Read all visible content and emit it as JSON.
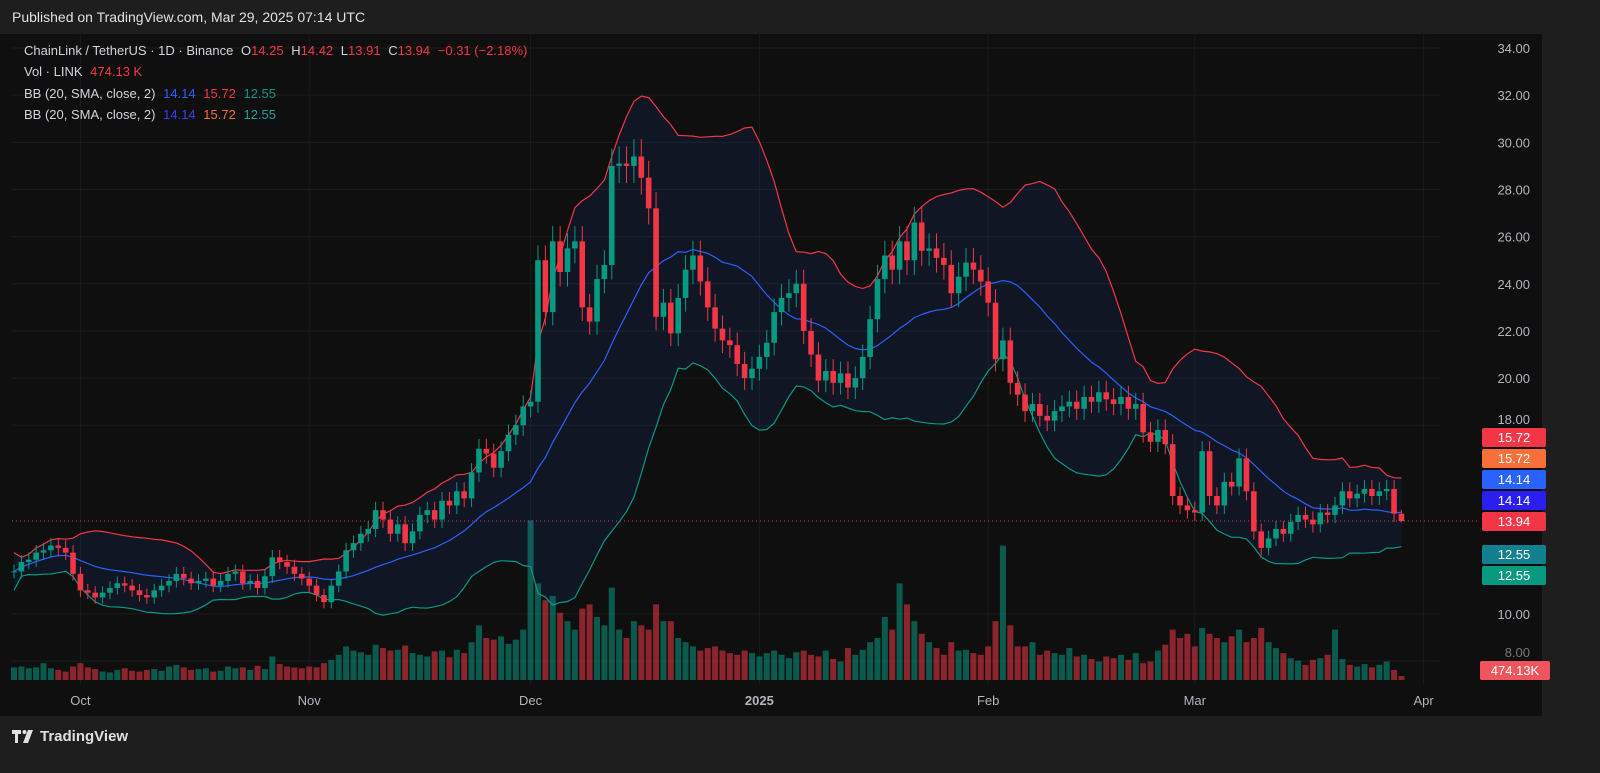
{
  "header": {
    "published": "Published on TradingView.com, Mar 29, 2025 07:14 UTC"
  },
  "footer": {
    "brand": "TradingView"
  },
  "legend": {
    "symbol": "ChainLink / TetherUS · 1D · Binance",
    "o_label": "O",
    "o": "14.25",
    "h_label": "H",
    "h": "14.42",
    "l_label": "L",
    "l": "13.91",
    "c_label": "C",
    "c": "13.94",
    "change": "−0.31 (−2.18%)",
    "vol_label": "Vol · LINK",
    "vol": "474.13 K",
    "bb1": {
      "label": "BB (20, SMA, close, 2)",
      "basis": "14.14",
      "upper": "15.72",
      "lower": "12.55"
    },
    "bb2": {
      "label": "BB (20, SMA, close, 2)",
      "basis": "14.14",
      "upper": "15.72",
      "lower": "12.55"
    }
  },
  "badges": {
    "upper1": "15.72",
    "upper2": "15.72",
    "basis1": "14.14",
    "basis2": "14.14",
    "last": "13.94",
    "lower1": "12.55",
    "lower2": "12.55",
    "volume": "474.13K"
  },
  "colors": {
    "up": "#089981",
    "down": "#f23645",
    "bb_upper": "#f23645",
    "bb_basis": "#2962ff",
    "bb_lower": "#089981",
    "background": "#0f0f0f"
  },
  "chart_data": {
    "type": "candlestick",
    "title": "ChainLink / TetherUS · 1D · Binance",
    "ylim": [
      9,
      34.5
    ],
    "y_ticks": [
      "34.00",
      "32.00",
      "30.00",
      "28.00",
      "26.00",
      "24.00",
      "22.00",
      "20.00",
      "18.00",
      "10.00",
      "8.00"
    ],
    "x_ticks": [
      {
        "label": "Oct",
        "date": "2024-10-01"
      },
      {
        "label": "Nov",
        "date": "2024-11-01"
      },
      {
        "label": "Dec",
        "date": "2024-12-01"
      },
      {
        "label": "2025",
        "date": "2025-01-01"
      },
      {
        "label": "Feb",
        "date": "2025-02-01"
      },
      {
        "label": "Mar",
        "date": "2025-03-01"
      },
      {
        "label": "Apr",
        "date": "2025-04-01"
      }
    ],
    "grid": true,
    "last_candle": {
      "date": "2025-03-29",
      "open": 14.25,
      "high": 14.42,
      "low": 13.91,
      "close": 13.94,
      "volume_k": 474.13
    },
    "indicators": [
      {
        "type": "bollinger",
        "length": 20,
        "ma": "SMA",
        "source": "close",
        "mult": 2,
        "basis": 14.14,
        "upper": 15.72,
        "lower": 12.55
      }
    ],
    "volume_unit": "M LINK",
    "months": [
      {
        "month": "2024-09",
        "first_day": 22,
        "close": [
          11.8,
          12.2,
          12.3,
          12.6,
          12.7,
          12.9,
          12.8,
          12.6,
          11.7
        ],
        "volume": [
          1.5,
          1.6,
          1.4,
          1.5,
          2.0,
          1.4,
          1.2,
          1.0,
          1.6
        ]
      },
      {
        "month": "2024-10",
        "first_day": 1,
        "close": [
          11.0,
          10.9,
          10.7,
          10.9,
          11.1,
          11.3,
          11.2,
          11.0,
          10.8,
          10.7,
          11.0,
          11.2,
          11.4,
          11.7,
          11.5,
          11.3,
          11.4,
          11.5,
          11.2,
          11.4,
          11.7,
          11.8,
          11.3,
          11.4,
          11.1,
          11.6,
          12.4,
          12.2,
          12.0,
          11.7,
          11.5
        ],
        "volume": [
          2.0,
          1.5,
          1.3,
          1.0,
          0.9,
          1.2,
          1.4,
          1.1,
          1.0,
          1.2,
          1.3,
          1.1,
          1.6,
          1.8,
          1.5,
          1.2,
          1.3,
          1.4,
          1.0,
          1.1,
          1.6,
          1.4,
          1.5,
          1.2,
          1.7,
          1.3,
          2.8,
          1.9,
          1.6,
          1.5,
          1.4
        ]
      },
      {
        "month": "2024-11",
        "first_day": 1,
        "close": [
          11.2,
          10.8,
          10.5,
          11.2,
          11.8,
          12.7,
          13.0,
          13.4,
          13.6,
          14.4,
          14.0,
          13.4,
          13.8,
          13.0,
          13.5,
          14.2,
          14.4,
          14.0,
          14.8,
          14.6,
          15.2,
          14.9,
          16.0,
          17.0,
          16.8,
          16.2,
          16.9,
          17.6,
          18.0,
          18.8
        ],
        "volume": [
          1.6,
          1.5,
          2.0,
          2.4,
          3.0,
          4.0,
          3.5,
          3.3,
          3.0,
          4.2,
          3.8,
          3.5,
          3.6,
          4.1,
          3.2,
          3.0,
          2.8,
          3.4,
          3.5,
          2.7,
          3.6,
          3.2,
          4.5,
          6.5,
          5.0,
          4.8,
          5.2,
          4.3,
          4.8,
          6.0
        ]
      },
      {
        "month": "2024-12",
        "first_day": 1,
        "close": [
          19.0,
          25.0,
          22.8,
          25.8,
          24.5,
          25.5,
          25.8,
          23.0,
          22.4,
          24.2,
          24.8,
          29.0,
          29.1,
          29.0,
          29.4,
          28.5,
          27.2,
          22.6,
          23.2,
          21.9,
          23.4,
          24.6,
          25.2,
          24.1,
          23.0,
          22.1,
          21.6,
          21.4,
          20.6,
          20.0,
          20.4
        ],
        "volume": [
          19.0,
          11.5,
          9.5,
          10.0,
          8.0,
          7.0,
          6.0,
          8.5,
          9.0,
          7.5,
          6.5,
          11.0,
          6.0,
          5.0,
          7.0,
          6.5,
          6.0,
          9.0,
          7.0,
          7.0,
          5.0,
          4.5,
          4.0,
          3.5,
          3.8,
          4.0,
          3.5,
          3.2,
          3.0,
          3.5,
          3.2
        ]
      },
      {
        "month": "2025-01",
        "first_day": 1,
        "close": [
          20.9,
          21.5,
          22.8,
          23.4,
          23.6,
          24.0,
          22.0,
          21.0,
          19.9,
          20.3,
          19.8,
          20.2,
          19.6,
          20.0,
          20.9,
          22.5,
          24.2,
          25.2,
          24.6,
          25.8,
          25.0,
          26.6,
          25.4,
          25.5,
          25.1,
          24.8,
          23.6,
          24.3,
          24.9,
          24.6,
          24.1
        ],
        "volume": [
          2.8,
          3.2,
          3.5,
          3.0,
          2.6,
          3.3,
          3.5,
          3.0,
          2.8,
          3.5,
          2.5,
          2.2,
          3.8,
          3.0,
          3.6,
          4.5,
          5.0,
          7.5,
          6.0,
          11.5,
          9.0,
          7.0,
          5.5,
          4.5,
          3.8,
          3.0,
          4.5,
          3.5,
          3.6,
          3.2,
          3.0
        ]
      },
      {
        "month": "2025-02",
        "first_day": 1,
        "close": [
          23.2,
          20.8,
          21.6,
          19.8,
          19.3,
          18.6,
          18.9,
          18.4,
          18.2,
          18.6,
          18.8,
          19.0,
          18.7,
          19.2,
          19.0,
          19.4,
          19.1,
          18.9,
          19.2,
          18.7,
          18.9,
          17.7,
          17.3,
          17.8,
          17.2,
          15.0,
          14.6,
          14.4
        ],
        "volume": [
          4.0,
          7.0,
          16.0,
          6.5,
          4.0,
          4.0,
          4.5,
          3.0,
          3.5,
          3.2,
          3.0,
          3.8,
          2.8,
          3.0,
          2.5,
          2.2,
          2.8,
          2.6,
          3.0,
          2.4,
          3.2,
          2.0,
          2.2,
          3.5,
          4.2,
          6.0,
          5.0,
          5.5
        ]
      },
      {
        "month": "2025-03",
        "first_day": 1,
        "close": [
          14.3,
          16.9,
          15.0,
          14.6,
          15.6,
          15.4,
          16.6,
          15.2,
          13.5,
          12.8,
          13.2,
          13.6,
          13.4,
          13.9,
          14.2,
          14.0,
          13.8,
          14.3,
          14.2,
          14.6,
          15.2,
          14.9,
          15.1,
          15.3,
          15.0,
          15.2,
          15.3,
          14.25,
          13.94
        ],
        "volume": [
          4.0,
          6.2,
          5.5,
          5.0,
          4.5,
          5.2,
          6.0,
          4.5,
          5.0,
          6.2,
          4.5,
          3.8,
          3.2,
          2.6,
          2.3,
          1.8,
          2.4,
          2.6,
          3.0,
          6.0,
          2.5,
          1.8,
          1.6,
          1.9,
          1.5,
          1.8,
          2.2,
          1.2,
          0.47
        ]
      }
    ]
  }
}
